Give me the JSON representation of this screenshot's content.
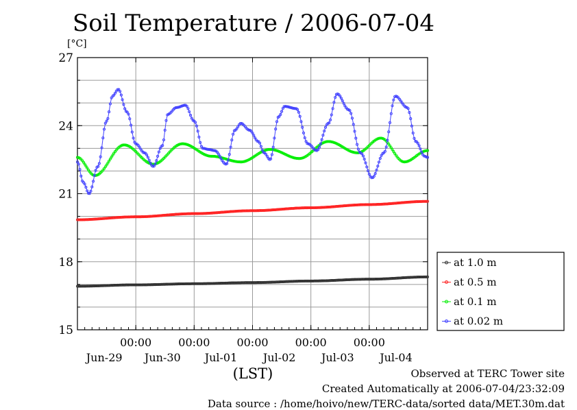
{
  "title": "Soil Temperature / 2006-07-04",
  "footer": {
    "line1": "Observed at TERC Tower site",
    "line2": "Created Automatically at 2006-07-04/23:32:09",
    "line3": "Data source : /home/hoivo/new/TERC-data/sorted  data/MET.30m.dat"
  },
  "chart_data": {
    "type": "line",
    "ylabel": "[°C]",
    "xlabel": "(LST)",
    "ylim": [
      15,
      27
    ],
    "yticks": [
      15,
      18,
      21,
      24,
      27
    ],
    "xlim": [
      0,
      6
    ],
    "x_unit": "days from 2006-06-28 12:00 LST",
    "xticks": [
      {
        "x": 1,
        "time": "00:00",
        "date": "Jun-29"
      },
      {
        "x": 2,
        "time": "00:00",
        "date": "Jun-30"
      },
      {
        "x": 3,
        "time": "00:00",
        "date": "Jul-01"
      },
      {
        "x": 4,
        "time": "00:00",
        "date": "Jul-02"
      },
      {
        "x": 5,
        "time": "00:00",
        "date": "Jul-03"
      },
      {
        "x": 6,
        "time": "00:00",
        "date": "Jul-04"
      }
    ],
    "grid": true,
    "legend_position": "right-bottom",
    "series": [
      {
        "name": "at 1.0 m",
        "color": "#303030",
        "x": [
          0,
          1,
          2,
          3,
          4,
          5,
          6
        ],
        "y": [
          16.92,
          16.98,
          17.03,
          17.08,
          17.15,
          17.23,
          17.33
        ]
      },
      {
        "name": "at 0.5 m",
        "color": "#ff2020",
        "x": [
          0,
          1,
          2,
          3,
          4,
          5,
          6
        ],
        "y": [
          19.85,
          19.98,
          20.12,
          20.25,
          20.38,
          20.52,
          20.66
        ]
      },
      {
        "name": "at 0.1 m",
        "color": "#00ee00",
        "x": [
          0,
          0.3,
          0.8,
          1.3,
          1.8,
          2.3,
          2.8,
          3.3,
          3.8,
          4.3,
          4.8,
          5.2,
          5.6,
          6
        ],
        "y": [
          22.6,
          21.8,
          23.15,
          22.3,
          23.2,
          22.65,
          22.4,
          22.95,
          22.55,
          23.3,
          22.8,
          23.45,
          22.4,
          22.9
        ]
      },
      {
        "name": "at 0.02 m",
        "color": "#4040ff",
        "x": [
          0,
          0.1,
          0.2,
          0.35,
          0.5,
          0.6,
          0.7,
          0.85,
          1,
          1.15,
          1.3,
          1.45,
          1.55,
          1.7,
          1.85,
          2,
          2.15,
          2.25,
          2.35,
          2.55,
          2.7,
          2.8,
          2.95,
          3.1,
          3.2,
          3.3,
          3.45,
          3.55,
          3.75,
          3.95,
          4.1,
          4.3,
          4.45,
          4.65,
          4.85,
          5.05,
          5.25,
          5.45,
          5.65,
          5.8,
          5.95,
          6
        ],
        "y": [
          22.4,
          21.5,
          21.0,
          22.2,
          24.2,
          25.3,
          25.6,
          24.6,
          23.2,
          22.8,
          22.2,
          23.1,
          24.5,
          24.8,
          24.9,
          24.2,
          23.0,
          22.95,
          22.9,
          22.3,
          23.8,
          24.1,
          23.8,
          23.3,
          22.8,
          22.5,
          24.4,
          24.85,
          24.75,
          23.2,
          22.9,
          24.1,
          25.4,
          24.7,
          22.8,
          21.7,
          22.8,
          25.3,
          24.8,
          23.3,
          22.65,
          22.6
        ]
      }
    ]
  }
}
